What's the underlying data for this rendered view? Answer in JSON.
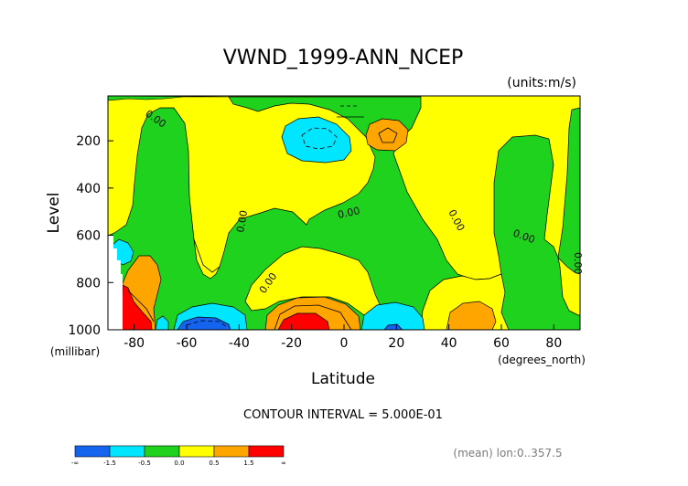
{
  "chart_data": {
    "type": "contour",
    "title": "VWND_1999-ANN_NCEP",
    "units": "(units:m/s)",
    "xlabel": "Latitude",
    "xunit": "(degrees_north)",
    "ylabel": "Level",
    "yunit": "(millibar)",
    "xlim": [
      -90,
      90
    ],
    "ylim": [
      1000,
      10
    ],
    "x_ticks": [
      -80,
      -60,
      -40,
      -20,
      0,
      20,
      40,
      60,
      80
    ],
    "y_ticks": [
      200,
      400,
      600,
      800,
      1000
    ],
    "contour_interval_text": "CONTOUR INTERVAL = 5.000E-01",
    "contour_labels": [
      "0.00",
      "0.00",
      "0.00",
      "0.00",
      "0.00",
      "0.00",
      "0.00",
      "0.00"
    ],
    "note": "(mean) lon:0..357.5",
    "colorbar": {
      "colors": [
        "#1464f0",
        "#00e6ff",
        "#1ed21e",
        "#ffff00",
        "#ffa500",
        "#ff0000"
      ],
      "labels": [
        "-∞",
        "-1.5",
        "-0.5",
        "0.0",
        "0.5",
        "1.5",
        "∞"
      ]
    },
    "regions": [
      {
        "level": "neg_weak",
        "x": 6,
        "y": 240
      },
      {
        "level": "pos_strong",
        "x": -15,
        "y": 975
      }
    ]
  }
}
